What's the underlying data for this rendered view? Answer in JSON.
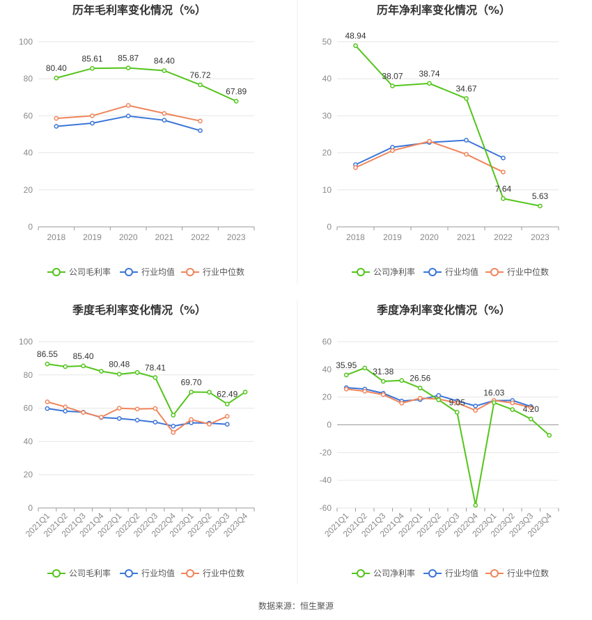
{
  "source": "数据来源：恒生聚源",
  "chart_data": [
    {
      "type": "line",
      "title": "历年毛利率变化情况（%）",
      "categories": [
        "2018",
        "2019",
        "2020",
        "2021",
        "2022",
        "2023"
      ],
      "ylim": [
        0,
        100
      ],
      "yticks": [
        0,
        20,
        40,
        60,
        80,
        100
      ],
      "grid": true,
      "legend_position": "bottom",
      "series": [
        {
          "name": "公司毛利率",
          "color": "#52c41a",
          "values": [
            80.4,
            85.61,
            85.87,
            84.4,
            76.72,
            67.89
          ],
          "labels": [
            "80.40",
            "85.61",
            "85.87",
            "84.40",
            "76.72",
            "67.89"
          ]
        },
        {
          "name": "行业均值",
          "color": "#3a75d8",
          "values": [
            54.3,
            56.0,
            59.9,
            57.6,
            52.0,
            null
          ]
        },
        {
          "name": "行业中位数",
          "color": "#f0845a",
          "values": [
            58.6,
            60.0,
            65.6,
            61.3,
            57.2,
            null
          ]
        }
      ]
    },
    {
      "type": "line",
      "title": "历年净利率变化情况（%）",
      "categories": [
        "2018",
        "2019",
        "2020",
        "2021",
        "2022",
        "2023"
      ],
      "ylim": [
        0,
        50
      ],
      "yticks": [
        0,
        10,
        20,
        30,
        40,
        50
      ],
      "grid": true,
      "legend_position": "bottom",
      "series": [
        {
          "name": "公司净利率",
          "color": "#52c41a",
          "values": [
            48.94,
            38.07,
            38.74,
            34.67,
            7.64,
            5.63
          ],
          "labels": [
            "48.94",
            "38.07",
            "38.74",
            "34.67",
            "7.64",
            "5.63"
          ]
        },
        {
          "name": "行业均值",
          "color": "#3a75d8",
          "values": [
            16.8,
            21.5,
            22.8,
            23.4,
            18.6,
            null
          ]
        },
        {
          "name": "行业中位数",
          "color": "#f0845a",
          "values": [
            16.0,
            20.6,
            23.1,
            19.6,
            14.8,
            null
          ]
        }
      ]
    },
    {
      "type": "line",
      "title": "季度毛利率变化情况（%）",
      "categories": [
        "2021Q1",
        "2021Q2",
        "2021Q3",
        "2021Q4",
        "2022Q1",
        "2022Q2",
        "2022Q3",
        "2022Q4",
        "2023Q1",
        "2023Q2",
        "2023Q3",
        "2023Q4"
      ],
      "ylim": [
        0,
        100
      ],
      "yticks": [
        0,
        20,
        40,
        60,
        80,
        100
      ],
      "grid": true,
      "legend_position": "bottom",
      "series": [
        {
          "name": "公司毛利率",
          "color": "#52c41a",
          "values": [
            86.55,
            85.0,
            85.4,
            82.2,
            80.48,
            81.5,
            78.41,
            55.8,
            69.7,
            69.6,
            62.49,
            69.7
          ],
          "labels": [
            "86.55",
            "",
            "85.40",
            "",
            "80.48",
            "",
            "78.41",
            "",
            "69.70",
            "",
            "62.49",
            ""
          ]
        },
        {
          "name": "行业均值",
          "color": "#3a75d8",
          "values": [
            59.8,
            58.2,
            57.6,
            54.4,
            53.8,
            52.8,
            51.6,
            49.2,
            51.2,
            51.0,
            50.3,
            null
          ]
        },
        {
          "name": "行业中位数",
          "color": "#f0845a",
          "values": [
            63.8,
            60.8,
            57.4,
            54.6,
            60.0,
            59.5,
            59.8,
            45.4,
            53.2,
            50.4,
            55.1,
            null
          ]
        }
      ]
    },
    {
      "type": "line",
      "title": "季度净利率变化情况（%）",
      "categories": [
        "2021Q1",
        "2021Q2",
        "2021Q3",
        "2021Q4",
        "2022Q1",
        "2022Q2",
        "2022Q3",
        "2022Q4",
        "2023Q1",
        "2023Q2",
        "2023Q3",
        "2023Q4"
      ],
      "ylim": [
        -60,
        60
      ],
      "yticks": [
        -60,
        -40,
        -20,
        0,
        20,
        40,
        60
      ],
      "grid": true,
      "legend_position": "bottom",
      "series": [
        {
          "name": "公司净利率",
          "color": "#52c41a",
          "values": [
            35.95,
            41.0,
            31.38,
            32.0,
            26.56,
            18.0,
            9.05,
            -58.0,
            16.03,
            11.0,
            4.2,
            -7.6
          ],
          "labels": [
            "35.95",
            "",
            "31.38",
            "",
            "26.56",
            "",
            "9.05",
            "",
            "16.03",
            "",
            "4.20",
            ""
          ]
        },
        {
          "name": "行业均值",
          "color": "#3a75d8",
          "values": [
            26.8,
            25.8,
            22.8,
            17.2,
            18.2,
            21.2,
            17.2,
            13.6,
            17.4,
            17.6,
            13.2,
            null
          ]
        },
        {
          "name": "行业中位数",
          "color": "#f0845a",
          "values": [
            25.8,
            24.2,
            21.8,
            15.6,
            19.2,
            18.6,
            15.8,
            10.4,
            17.6,
            15.8,
            12.4,
            null
          ]
        }
      ]
    }
  ]
}
